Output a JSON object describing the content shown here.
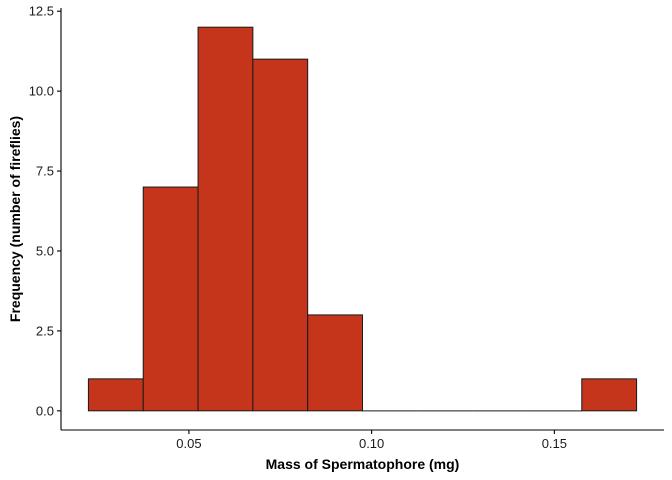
{
  "chart_data": {
    "type": "bar",
    "subtype": "histogram",
    "title": "",
    "xlabel": "Mass of Spermatophore (mg)",
    "ylabel": "Frequency (number of fireflies)",
    "bar_color": "#c4351b",
    "bar_edge_color": "#1a1a1a",
    "bin_width": 0.015,
    "bins": [
      {
        "x0": 0.0225,
        "x1": 0.0375,
        "count": 1
      },
      {
        "x0": 0.0375,
        "x1": 0.0525,
        "count": 7
      },
      {
        "x0": 0.0525,
        "x1": 0.0675,
        "count": 12
      },
      {
        "x0": 0.0675,
        "x1": 0.0825,
        "count": 11
      },
      {
        "x0": 0.0825,
        "x1": 0.0975,
        "count": 3
      },
      {
        "x0": 0.0975,
        "x1": 0.1125,
        "count": 0
      },
      {
        "x0": 0.1125,
        "x1": 0.1275,
        "count": 0
      },
      {
        "x0": 0.1275,
        "x1": 0.1425,
        "count": 0
      },
      {
        "x0": 0.1425,
        "x1": 0.1575,
        "count": 0
      },
      {
        "x0": 0.1575,
        "x1": 0.1725,
        "count": 1
      }
    ],
    "xlim": [
      0.015,
      0.18
    ],
    "ylim": [
      -0.6,
      12.6
    ],
    "x_ticks": [
      0.05,
      0.1,
      0.15
    ],
    "x_tick_labels": [
      "0.05",
      "0.10",
      "0.15"
    ],
    "y_ticks": [
      0,
      2.5,
      5,
      7.5,
      10,
      12.5
    ],
    "y_tick_labels": [
      "0.0",
      "2.5",
      "5.0",
      "7.5",
      "10.0",
      "12.5"
    ],
    "grid": false,
    "legend": "none"
  }
}
